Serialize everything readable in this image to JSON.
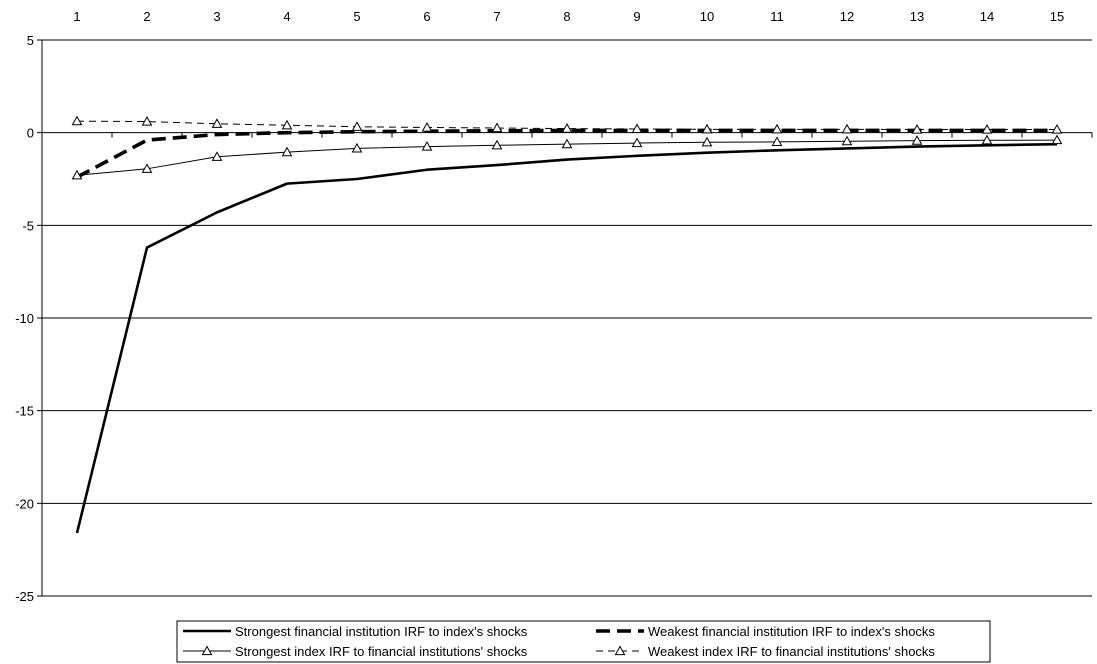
{
  "chart_data": {
    "type": "line",
    "title": "",
    "xlabel": "",
    "ylabel": "",
    "x": [
      1,
      2,
      3,
      4,
      5,
      6,
      7,
      8,
      9,
      10,
      11,
      12,
      13,
      14,
      15
    ],
    "x_tick_labels": [
      "1",
      "2",
      "3",
      "4",
      "5",
      "6",
      "7",
      "8",
      "9",
      "10",
      "11",
      "12",
      "13",
      "14",
      "15"
    ],
    "x_axis_position": "top",
    "ylim": [
      -25,
      5
    ],
    "y_ticks": [
      5,
      0,
      -5,
      -10,
      -15,
      -20,
      -25
    ],
    "y_tick_labels": [
      "5",
      "0",
      "-5",
      "-10",
      "-15",
      "-20",
      "-25"
    ],
    "grid": "horizontal",
    "legend_position": "bottom-center",
    "series": [
      {
        "name": "Strongest financial institution IRF to index's shocks",
        "style": "solid-thick",
        "marker": "none",
        "values": [
          -21.6,
          -6.2,
          -4.3,
          -2.75,
          -2.5,
          -2.0,
          -1.75,
          -1.45,
          -1.25,
          -1.08,
          -0.95,
          -0.85,
          -0.75,
          -0.68,
          -0.62
        ]
      },
      {
        "name": "Weakest financial institution IRF to index's shocks",
        "style": "dashed-thick",
        "marker": "none",
        "values": [
          -2.4,
          -0.4,
          -0.1,
          0.0,
          0.05,
          0.08,
          0.1,
          0.12,
          0.12,
          0.12,
          0.12,
          0.12,
          0.12,
          0.12,
          0.12
        ]
      },
      {
        "name": "Strongest index IRF to financial institutions' shocks",
        "style": "solid-thin",
        "marker": "triangle",
        "values": [
          -2.3,
          -1.95,
          -1.3,
          -1.05,
          -0.85,
          -0.75,
          -0.68,
          -0.62,
          -0.56,
          -0.52,
          -0.5,
          -0.46,
          -0.43,
          -0.41,
          -0.4
        ]
      },
      {
        "name": "Weakest index IRF to financial institutions' shocks",
        "style": "dashed-thin",
        "marker": "triangle",
        "values": [
          0.62,
          0.6,
          0.48,
          0.4,
          0.32,
          0.28,
          0.25,
          0.22,
          0.2,
          0.18,
          0.18,
          0.18,
          0.17,
          0.17,
          0.17
        ]
      }
    ]
  }
}
